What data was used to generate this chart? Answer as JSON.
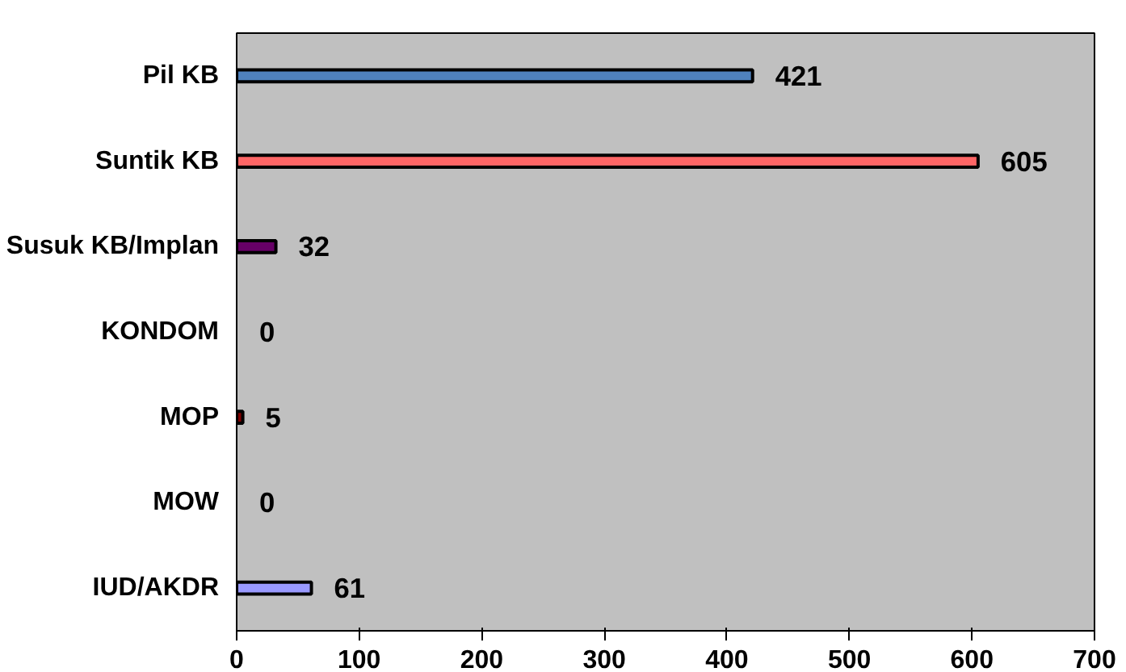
{
  "chart_data": {
    "type": "bar",
    "orientation": "horizontal",
    "categories": [
      "Pil KB",
      "Suntik KB",
      "Susuk KB/Implan",
      "KONDOM",
      "MOP",
      "MOW",
      "IUD/AKDR"
    ],
    "values": [
      421,
      605,
      32,
      0,
      5,
      0,
      61
    ],
    "colors": [
      "#4f81bd",
      "#ff6666",
      "#660066",
      null,
      "#800000",
      null,
      "#9999ff"
    ],
    "xlim": [
      0,
      700
    ],
    "xticks": [
      0,
      100,
      200,
      300,
      400,
      500,
      600,
      700
    ],
    "data_labels": true
  }
}
